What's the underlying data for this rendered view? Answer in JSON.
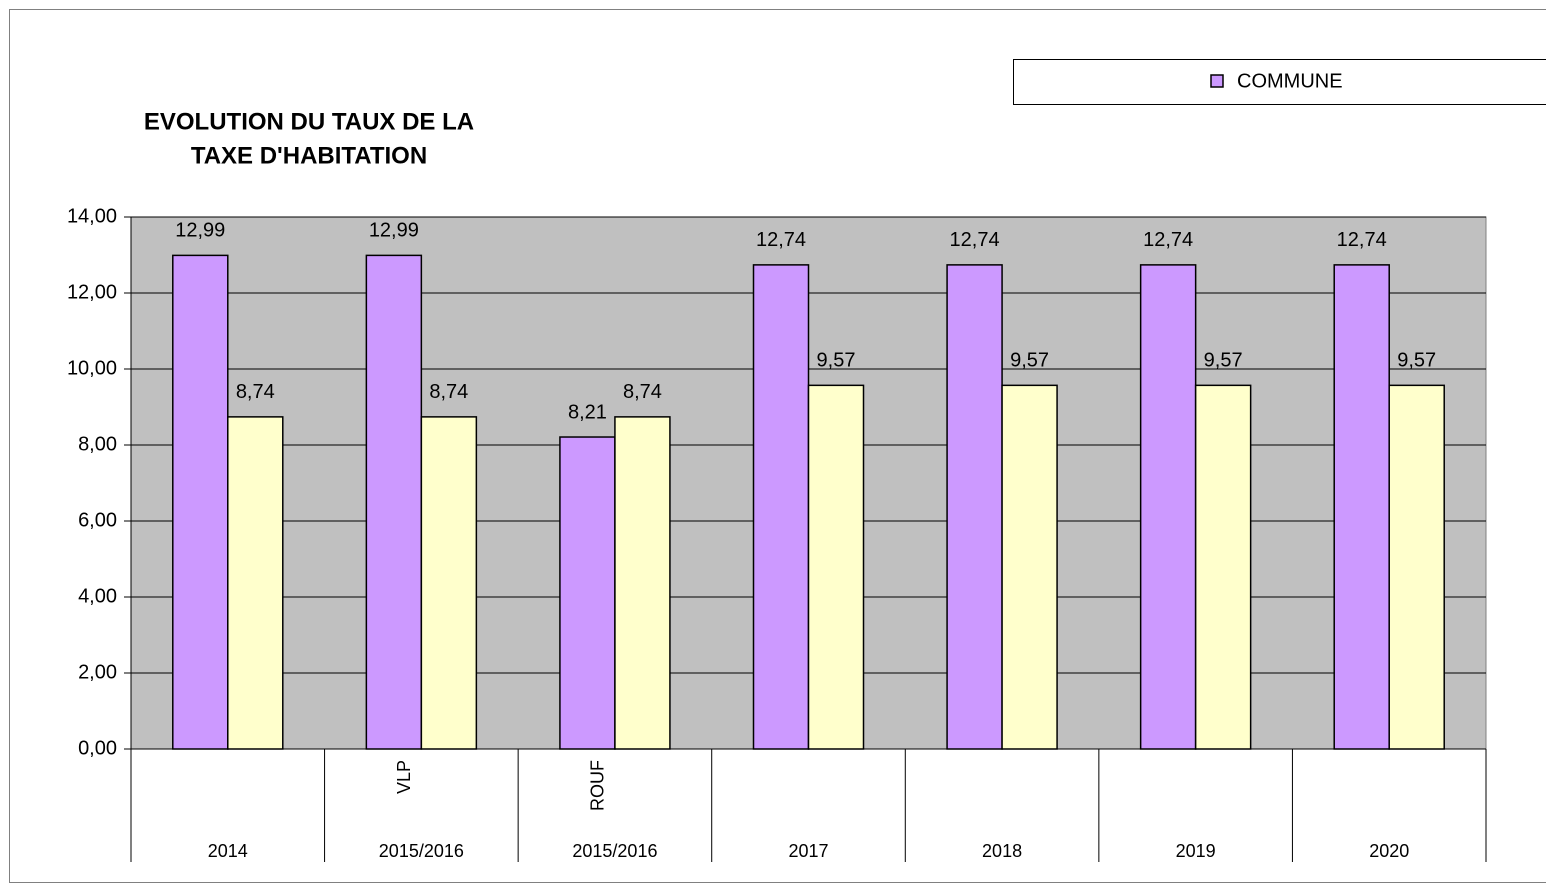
{
  "chart_data": {
    "type": "bar",
    "title": [
      "EVOLUTION DU TAUX DE LA",
      "TAXE D'HABITATION"
    ],
    "categories": [
      "2014",
      "2015/2016",
      "2015/2016",
      "2017",
      "2018",
      "2019",
      "2020"
    ],
    "subcategories": [
      null,
      "VLP",
      "ROUF",
      null,
      null,
      null,
      null
    ],
    "series": [
      {
        "name": "COMMUNE",
        "color": "#cc99ff",
        "values": [
          12.99,
          12.99,
          8.21,
          12.74,
          12.74,
          12.74,
          12.74
        ],
        "value_labels": [
          "12,99",
          "12,99",
          "8,21",
          "12,74",
          "12,74",
          "12,74",
          "12,74"
        ]
      },
      {
        "color": "#ffffcc",
        "values": [
          8.74,
          8.74,
          8.74,
          9.57,
          9.57,
          9.57,
          9.57
        ],
        "value_labels": [
          "8,74",
          "8,74",
          "8,74",
          "9,57",
          "9,57",
          "9,57",
          "9,57"
        ]
      }
    ],
    "ylim": [
      0,
      14
    ],
    "yticks": [
      {
        "value": 0,
        "label": "0,00"
      },
      {
        "value": 2,
        "label": "2,00"
      },
      {
        "value": 4,
        "label": "4,00"
      },
      {
        "value": 6,
        "label": "6,00"
      },
      {
        "value": 8,
        "label": "8,00"
      },
      {
        "value": 10,
        "label": "10,00"
      },
      {
        "value": 12,
        "label": "12,00"
      },
      {
        "value": 14,
        "label": "14,00"
      }
    ],
    "grid": true,
    "plot_background": "#c0c0c0",
    "legend": "top-right"
  }
}
